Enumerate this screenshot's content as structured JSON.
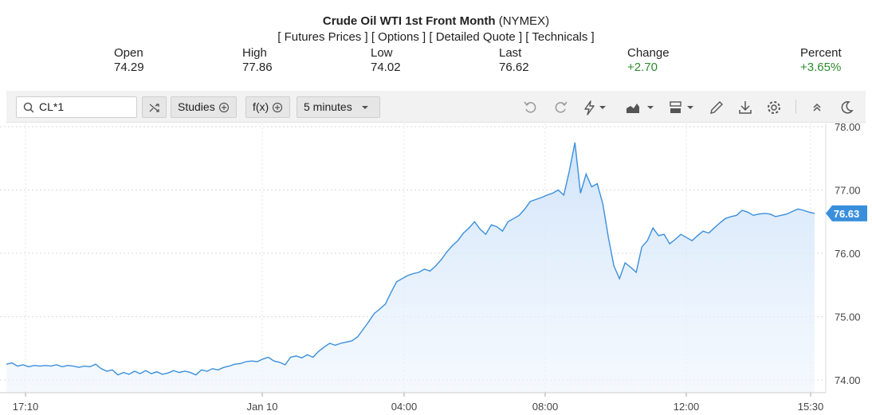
{
  "header": {
    "name": "Crude Oil WTI 1st Front Month",
    "exchange": "(NYMEX)",
    "links": [
      "[ Futures Prices ]",
      "[ Options ]",
      "[ Detailed Quote ]",
      "[ Technicals ]"
    ]
  },
  "quote": {
    "open_label": "Open",
    "open": "74.29",
    "high_label": "High",
    "high": "77.86",
    "low_label": "Low",
    "low": "74.02",
    "last_label": "Last",
    "last": "76.62",
    "change_label": "Change",
    "change": "+2.70",
    "percent_label": "Percent",
    "percent": "+3.65%"
  },
  "toolbar": {
    "symbol": "CL*1",
    "studies_label": "Studies",
    "fx_label": "f(x)",
    "interval_label": "5 minutes",
    "icons": [
      "search-icon",
      "compare-icon",
      "plus-circle-icon",
      "chevron-down-icon",
      "undo-icon",
      "redo-icon",
      "lightning-icon",
      "chart-type-icon",
      "layout-icon",
      "pencil-icon",
      "download-icon",
      "gear-icon",
      "collapse-icon",
      "moon-icon"
    ]
  },
  "colors": {
    "line": "#3a8fdc",
    "fill": "#d8e9fb",
    "badge": "#3a8fdc",
    "positive": "#2e8b2e"
  },
  "chart_data": {
    "type": "area",
    "current_price_label": "76.63",
    "y_ticks": [
      "74.00",
      "75.00",
      "76.00",
      "77.00",
      "78.00"
    ],
    "x_ticks": [
      "17:10",
      "Jan 10",
      "04:00",
      "08:00",
      "12:00",
      "15:30"
    ],
    "ylim": [
      73.8,
      78.05
    ],
    "grid": true,
    "x": [
      0,
      7,
      14,
      21,
      28,
      35,
      42,
      49,
      56,
      63,
      70,
      77,
      84,
      91,
      98,
      105,
      112,
      119,
      126,
      133,
      140,
      147,
      154,
      161,
      168,
      175,
      182,
      189,
      196,
      203,
      210,
      217,
      224,
      231,
      238,
      245,
      252,
      259,
      266,
      273,
      280,
      287,
      294,
      301,
      308,
      315,
      322,
      329,
      336,
      343,
      350,
      357,
      364,
      371,
      378,
      385,
      392,
      399,
      406,
      413,
      420,
      427,
      434,
      441,
      448,
      455,
      462,
      469,
      476,
      483,
      490,
      497,
      504,
      511,
      518,
      525,
      532,
      539,
      546,
      553,
      560,
      567,
      574,
      581,
      588,
      595,
      602,
      609,
      616,
      623,
      630,
      637,
      644,
      651,
      658,
      665,
      672,
      679,
      686,
      693,
      700,
      707,
      714,
      721,
      728,
      735,
      742,
      749,
      756,
      763,
      770,
      777,
      784,
      791,
      798,
      805,
      812,
      819,
      826,
      833,
      840,
      847,
      854,
      861,
      868,
      875,
      882,
      889,
      896,
      903,
      910,
      917,
      924,
      931,
      938,
      945,
      952,
      959,
      966,
      973,
      980,
      987,
      994,
      1001,
      1008,
      1015
    ],
    "y": [
      74.25,
      74.27,
      74.22,
      74.24,
      74.21,
      74.23,
      74.22,
      74.23,
      74.22,
      74.24,
      74.21,
      74.23,
      74.22,
      74.2,
      74.22,
      74.21,
      74.25,
      74.18,
      74.14,
      74.16,
      74.08,
      74.12,
      74.09,
      74.14,
      74.1,
      74.15,
      74.1,
      74.13,
      74.09,
      74.11,
      74.15,
      74.12,
      74.14,
      74.12,
      74.08,
      74.16,
      74.14,
      74.18,
      74.16,
      74.2,
      74.22,
      74.25,
      74.26,
      74.29,
      74.3,
      74.29,
      74.33,
      74.36,
      74.3,
      74.28,
      74.24,
      74.36,
      74.38,
      74.35,
      74.4,
      74.36,
      74.45,
      74.52,
      74.58,
      74.55,
      74.58,
      74.6,
      74.62,
      74.68,
      74.8,
      74.92,
      75.05,
      75.12,
      75.2,
      75.38,
      75.55,
      75.6,
      75.65,
      75.68,
      75.7,
      75.75,
      75.72,
      75.8,
      75.9,
      76.02,
      76.12,
      76.2,
      76.32,
      76.4,
      76.5,
      76.38,
      76.3,
      76.45,
      76.42,
      76.35,
      76.5,
      76.55,
      76.6,
      76.7,
      76.82,
      76.85,
      76.88,
      76.92,
      76.95,
      77.0,
      76.92,
      77.3,
      77.75,
      76.95,
      77.25,
      77.05,
      77.1,
      76.78,
      76.25,
      75.8,
      75.6,
      75.85,
      75.78,
      75.7,
      76.1,
      76.2,
      76.4,
      76.28,
      76.3,
      76.15,
      76.22,
      76.3,
      76.25,
      76.2,
      76.28,
      76.35,
      76.32,
      76.4,
      76.48,
      76.55,
      76.58,
      76.6,
      76.68,
      76.65,
      76.6,
      76.62,
      76.63,
      76.62,
      76.58,
      76.6,
      76.62,
      76.66,
      76.7,
      76.68,
      76.65,
      76.63
    ]
  }
}
